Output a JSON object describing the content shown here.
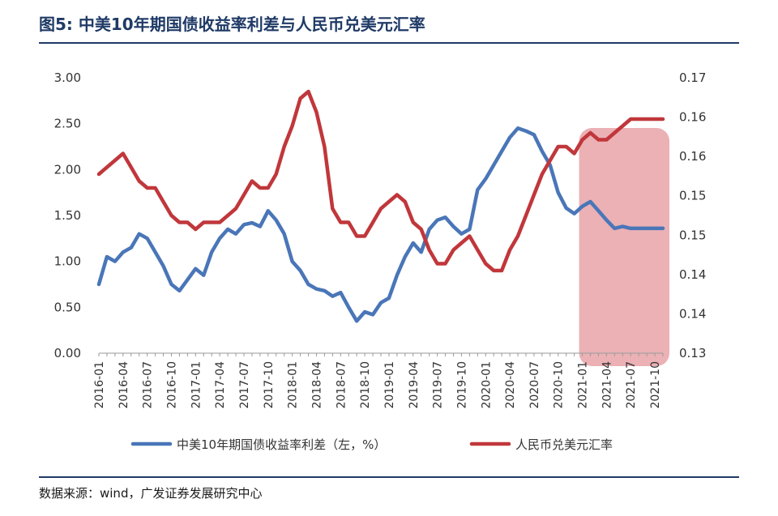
{
  "title": "图5:  中美10年期国债收益率利差与人民币兑美元汇率",
  "source": "数据来源：wind，广发证券发展研究中心",
  "colors": {
    "spread": "#4a76b8",
    "fx": "#c0373b",
    "highlight": "#e7a3a8",
    "title": "#1f3a66"
  },
  "chart_data": {
    "type": "line",
    "x": [
      "2016-01",
      "2016-02",
      "2016-03",
      "2016-04",
      "2016-05",
      "2016-06",
      "2016-07",
      "2016-08",
      "2016-09",
      "2016-10",
      "2016-11",
      "2016-12",
      "2017-01",
      "2017-02",
      "2017-03",
      "2017-04",
      "2017-05",
      "2017-06",
      "2017-07",
      "2017-08",
      "2017-09",
      "2017-10",
      "2017-11",
      "2017-12",
      "2018-01",
      "2018-02",
      "2018-03",
      "2018-04",
      "2018-05",
      "2018-06",
      "2018-07",
      "2018-08",
      "2018-09",
      "2018-10",
      "2018-11",
      "2018-12",
      "2019-01",
      "2019-02",
      "2019-03",
      "2019-04",
      "2019-05",
      "2019-06",
      "2019-07",
      "2019-08",
      "2019-09",
      "2019-10",
      "2019-11",
      "2019-12",
      "2020-01",
      "2020-02",
      "2020-03",
      "2020-04",
      "2020-05",
      "2020-06",
      "2020-07",
      "2020-08",
      "2020-09",
      "2020-10",
      "2020-11",
      "2020-12",
      "2021-01",
      "2021-02",
      "2021-03",
      "2021-04",
      "2021-05",
      "2021-06",
      "2021-07",
      "2021-08",
      "2021-09",
      "2021-10",
      "2021-11"
    ],
    "xticks": [
      "2016-01",
      "2016-04",
      "2016-07",
      "2016-10",
      "2017-01",
      "2017-04",
      "2017-07",
      "2017-10",
      "2018-01",
      "2018-04",
      "2018-07",
      "2018-10",
      "2019-01",
      "2019-04",
      "2019-07",
      "2019-10",
      "2020-01",
      "2020-04",
      "2020-07",
      "2020-10",
      "2021-01",
      "2021-04",
      "2021-07",
      "2021-10"
    ],
    "series": [
      {
        "name": "中美10年期国债收益率利差（左，%）",
        "axis": "left",
        "values": [
          0.75,
          1.05,
          1.0,
          1.1,
          1.15,
          1.3,
          1.25,
          1.1,
          0.95,
          0.75,
          0.68,
          0.8,
          0.92,
          0.85,
          1.1,
          1.25,
          1.35,
          1.3,
          1.4,
          1.42,
          1.38,
          1.55,
          1.45,
          1.3,
          1.0,
          0.9,
          0.75,
          0.7,
          0.68,
          0.62,
          0.66,
          0.5,
          0.35,
          0.45,
          0.42,
          0.55,
          0.6,
          0.85,
          1.05,
          1.2,
          1.1,
          1.35,
          1.45,
          1.48,
          1.38,
          1.3,
          1.35,
          1.78,
          1.9,
          2.05,
          2.2,
          2.35,
          2.45,
          2.42,
          2.38,
          2.2,
          2.05,
          1.75,
          1.58,
          1.52,
          1.6,
          1.65,
          1.55,
          1.45,
          1.36,
          1.38,
          1.36,
          1.36,
          1.36,
          1.36,
          1.36
        ]
      },
      {
        "name": "人民币兑美元汇率",
        "axis": "right",
        "values": [
          0.156,
          0.157,
          0.158,
          0.159,
          0.157,
          0.155,
          0.154,
          0.154,
          0.152,
          0.15,
          0.149,
          0.149,
          0.148,
          0.149,
          0.149,
          0.149,
          0.15,
          0.151,
          0.153,
          0.155,
          0.154,
          0.154,
          0.156,
          0.16,
          0.163,
          0.167,
          0.168,
          0.165,
          0.16,
          0.151,
          0.149,
          0.149,
          0.147,
          0.147,
          0.149,
          0.151,
          0.152,
          0.153,
          0.152,
          0.149,
          0.148,
          0.145,
          0.143,
          0.143,
          0.145,
          0.146,
          0.147,
          0.145,
          0.143,
          0.142,
          0.142,
          0.145,
          0.147,
          0.15,
          0.153,
          0.156,
          0.158,
          0.16,
          0.16,
          0.159,
          0.161,
          0.162,
          0.161,
          0.161,
          0.162,
          0.163,
          0.164,
          0.164,
          0.164,
          0.164,
          0.164
        ]
      }
    ],
    "left_axis": {
      "min": 0,
      "max": 3,
      "ticks": [
        "0.00",
        "0.50",
        "1.00",
        "1.50",
        "2.00",
        "2.50",
        "3.00"
      ]
    },
    "right_axis": {
      "min": 0.13,
      "max": 0.17,
      "ticks": [
        "0.13",
        "0.14",
        "0.14",
        "0.15",
        "0.15",
        "0.16",
        "0.16",
        "0.17"
      ]
    },
    "highlight_range": [
      "2021-01",
      "2021-11"
    ],
    "grid": false,
    "legend_position": "bottom"
  }
}
